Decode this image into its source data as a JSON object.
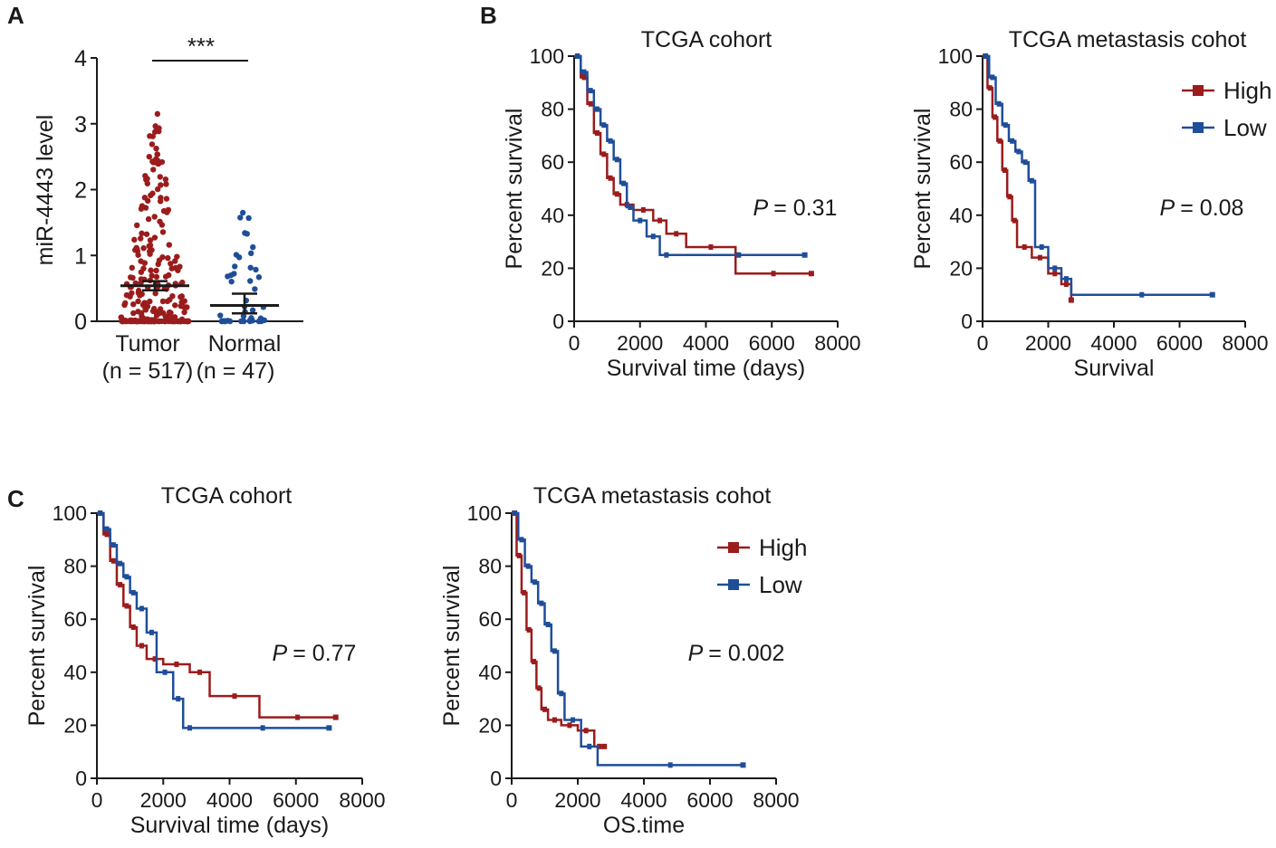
{
  "figure": {
    "panel_labels": [
      "A",
      "B",
      "C"
    ]
  },
  "colors": {
    "high": "#9b1c1c",
    "low": "#1f4e99",
    "axis": "#1a1a1a"
  },
  "chart_data": [
    {
      "id": "A",
      "type": "scatter",
      "ylabel": "miR-4443 level",
      "ylim": [
        0,
        4
      ],
      "yticks": [
        0,
        1,
        2,
        3,
        4
      ],
      "groups": [
        {
          "name": "Tumor",
          "n_label": "(n = 517)",
          "mean": 0.54,
          "ci_low": 0.47,
          "ci_high": 0.61,
          "max": 3.15,
          "count": 517
        },
        {
          "name": "Normal",
          "n_label": "(n = 47)",
          "mean": 0.24,
          "ci_low": 0.12,
          "ci_high": 0.42,
          "max": 1.65,
          "count": 47
        }
      ],
      "significance": "***"
    },
    {
      "id": "B1",
      "type": "line",
      "title": "TCGA cohort",
      "xlabel": "Survival time (days)",
      "ylabel": "Percent survival",
      "xlim": [
        0,
        8000
      ],
      "ylim": [
        0,
        100
      ],
      "xticks": [
        0,
        2000,
        4000,
        6000,
        8000
      ],
      "yticks": [
        0,
        20,
        40,
        60,
        80,
        100
      ],
      "p_label": "P",
      "p_value": "= 0.31",
      "series": [
        {
          "name": "High",
          "x": [
            0,
            200,
            400,
            600,
            800,
            1000,
            1200,
            1400,
            1800,
            2400,
            2800,
            3400,
            4900,
            7200
          ],
          "y": [
            100,
            92,
            82,
            71,
            63,
            54,
            48,
            44,
            42,
            38,
            33,
            28,
            18,
            18
          ]
        },
        {
          "name": "Low",
          "x": [
            0,
            200,
            400,
            600,
            800,
            1000,
            1200,
            1400,
            1600,
            1800,
            2200,
            2600,
            3000,
            7000
          ],
          "y": [
            100,
            94,
            87,
            80,
            74,
            68,
            61,
            52,
            43,
            38,
            32,
            25,
            25,
            25
          ]
        }
      ]
    },
    {
      "id": "B2",
      "type": "line",
      "title": "TCGA metastasis cohot",
      "xlabel": "Survival",
      "ylabel": "Percent survival",
      "xlim": [
        0,
        8000
      ],
      "ylim": [
        0,
        100
      ],
      "xticks": [
        0,
        2000,
        4000,
        6000,
        8000
      ],
      "yticks": [
        0,
        20,
        40,
        60,
        80,
        100
      ],
      "p_label": "P",
      "p_value": "= 0.08",
      "legend": [
        "High",
        "Low"
      ],
      "series": [
        {
          "name": "High",
          "x": [
            0,
            150,
            300,
            450,
            600,
            750,
            900,
            1050,
            1500,
            2000,
            2400,
            2700
          ],
          "y": [
            100,
            88,
            77,
            68,
            57,
            47,
            38,
            28,
            24,
            18,
            14,
            8
          ]
        },
        {
          "name": "Low",
          "x": [
            0,
            200,
            400,
            600,
            800,
            1000,
            1200,
            1400,
            1600,
            2000,
            2400,
            2700,
            7000
          ],
          "y": [
            100,
            92,
            82,
            74,
            68,
            64,
            60,
            53,
            28,
            20,
            16,
            10,
            10
          ]
        }
      ]
    },
    {
      "id": "C1",
      "type": "line",
      "title": "TCGA cohort",
      "xlabel": "Survival time (days)",
      "ylabel": "Percent survival",
      "xlim": [
        0,
        8000
      ],
      "ylim": [
        0,
        100
      ],
      "xticks": [
        0,
        2000,
        4000,
        6000,
        8000
      ],
      "yticks": [
        0,
        20,
        40,
        60,
        80,
        100
      ],
      "p_label": "P",
      "p_value": "= 0.77",
      "series": [
        {
          "name": "High",
          "x": [
            0,
            200,
            400,
            600,
            800,
            1000,
            1200,
            1500,
            2000,
            2800,
            3400,
            4900,
            7200
          ],
          "y": [
            100,
            92,
            82,
            73,
            65,
            57,
            50,
            45,
            43,
            40,
            31,
            23,
            23
          ]
        },
        {
          "name": "Low",
          "x": [
            0,
            200,
            400,
            600,
            800,
            1000,
            1200,
            1500,
            1800,
            2300,
            2600,
            3000,
            7000
          ],
          "y": [
            100,
            94,
            88,
            81,
            76,
            70,
            64,
            55,
            40,
            30,
            19,
            19,
            19
          ]
        }
      ]
    },
    {
      "id": "C2",
      "type": "line",
      "title": "TCGA metastasis cohot",
      "xlabel": "OS.time",
      "ylabel": "Percent survival",
      "xlim": [
        0,
        8000
      ],
      "ylim": [
        0,
        100
      ],
      "xticks": [
        0,
        2000,
        4000,
        6000,
        8000
      ],
      "yticks": [
        0,
        20,
        40,
        60,
        80,
        100
      ],
      "p_label": "P",
      "p_value": "= 0.002",
      "legend": [
        "High",
        "Low"
      ],
      "series": [
        {
          "name": "High",
          "x": [
            0,
            150,
            300,
            450,
            600,
            750,
            900,
            1100,
            1500,
            2000,
            2500,
            2800
          ],
          "y": [
            100,
            84,
            70,
            56,
            44,
            34,
            26,
            22,
            20,
            18,
            12,
            12
          ]
        },
        {
          "name": "Low",
          "x": [
            0,
            200,
            400,
            600,
            800,
            1000,
            1200,
            1400,
            1600,
            2100,
            2600,
            7000
          ],
          "y": [
            100,
            90,
            80,
            74,
            66,
            58,
            48,
            32,
            22,
            12,
            5,
            5
          ]
        }
      ]
    }
  ]
}
